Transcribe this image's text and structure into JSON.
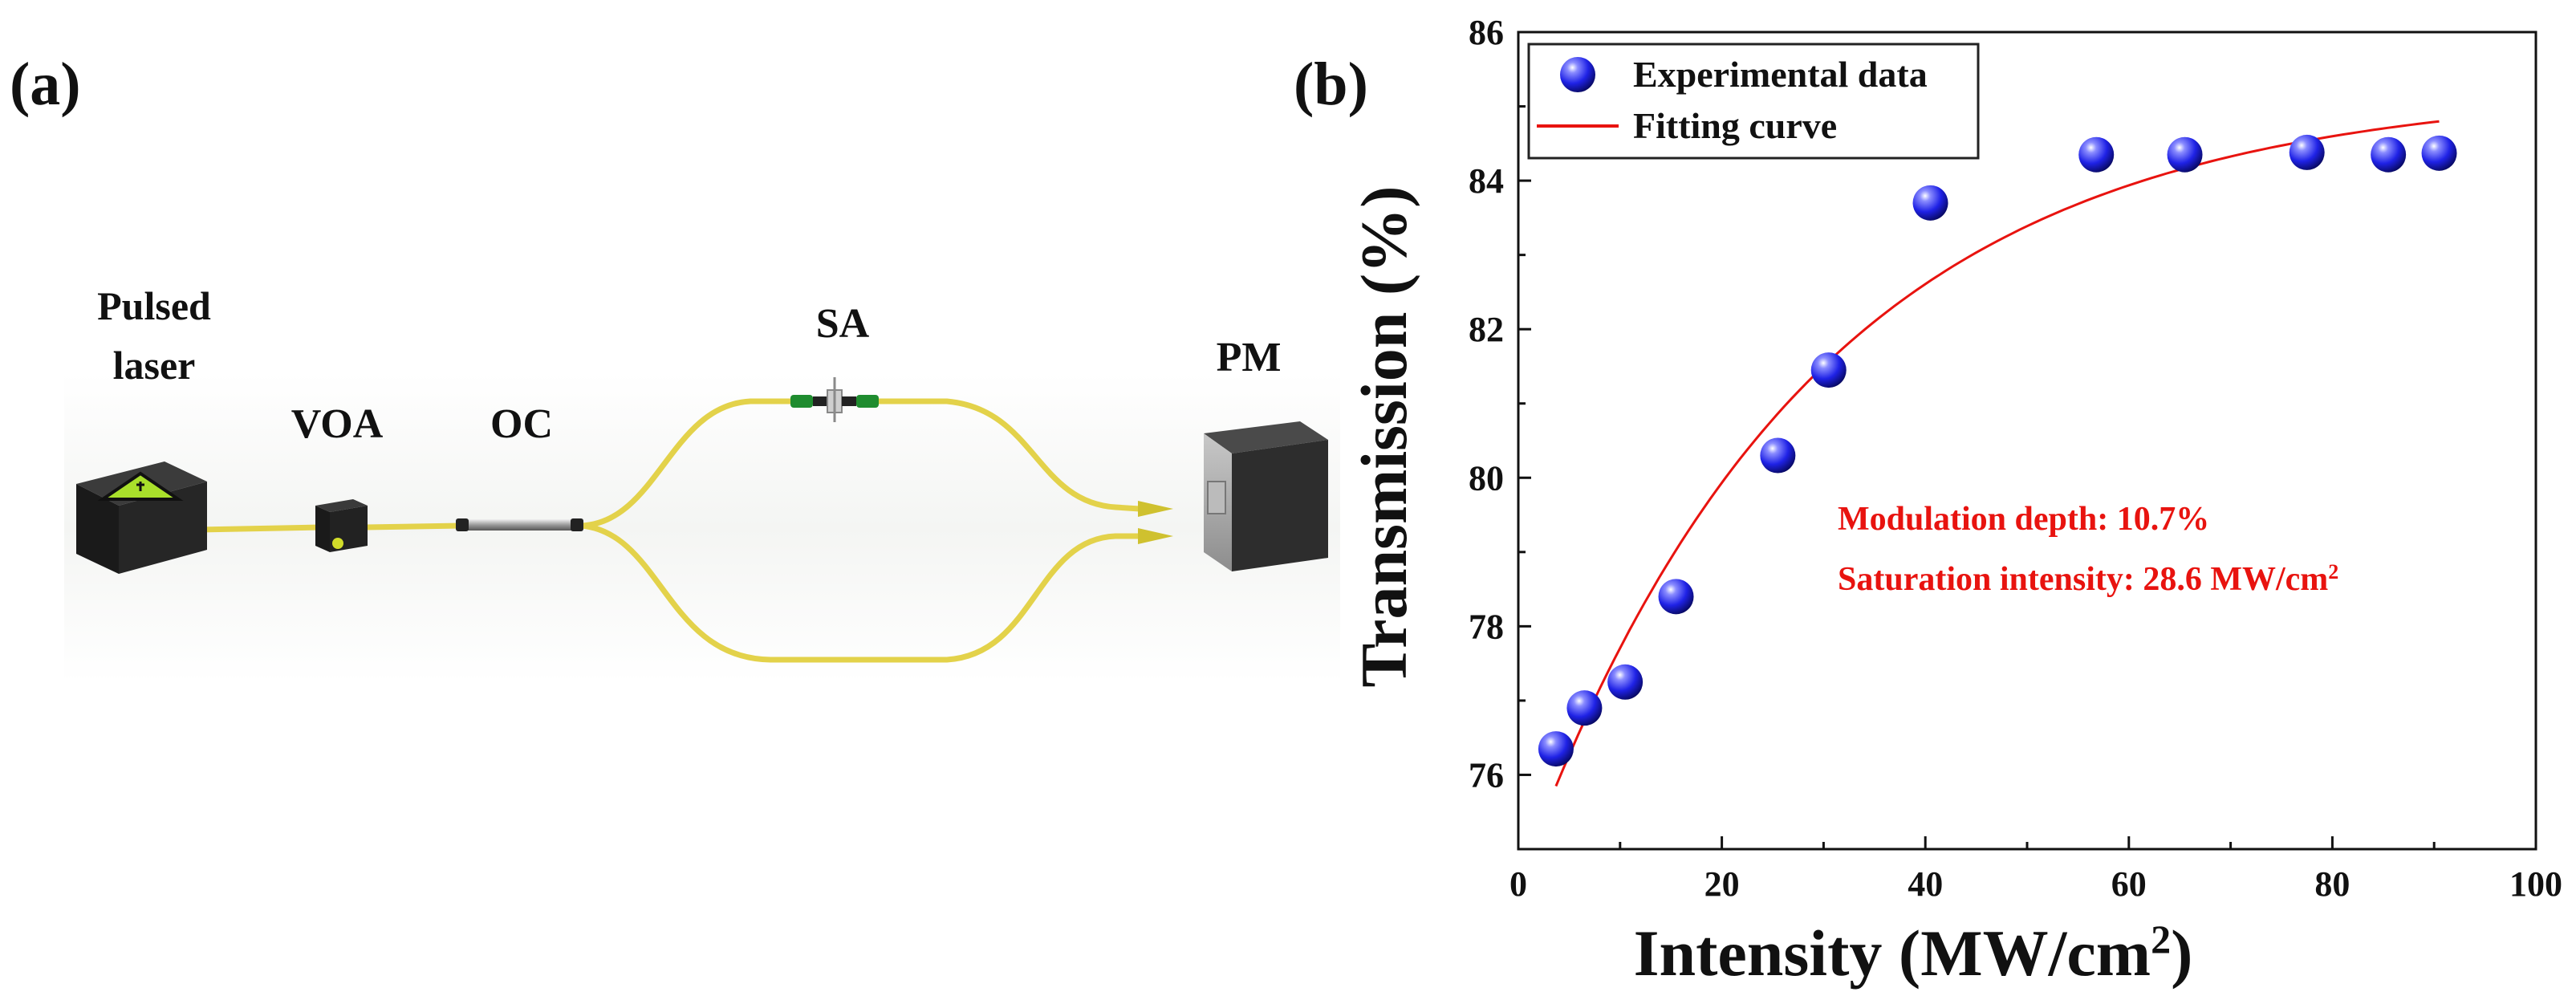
{
  "panel_a": {
    "label": "(a)",
    "components": {
      "laser_line1": "Pulsed",
      "laser_line2": "laser",
      "voa": "VOA",
      "oc": "OC",
      "sa": "SA",
      "pm": "PM"
    }
  },
  "panel_b": {
    "label": "(b)",
    "annotation": {
      "modulation": "Modulation depth: 10.7%",
      "saturation_prefix": "Saturation intensity: 28.6 MW/cm",
      "saturation_sup": "2"
    }
  },
  "colors": {
    "fiber": "#e3d24a",
    "curve": "#e8130f",
    "marker": "#1f22e6",
    "annotation": "#e8130f"
  },
  "chart_data": {
    "type": "scatter",
    "xlabel_main": "Intensity (MW/cm",
    "xlabel_sup": "2",
    "xlabel_tail": ")",
    "ylabel": "Transmission (%)",
    "xlim": [
      0,
      100
    ],
    "ylim": [
      75,
      86
    ],
    "xticks": [
      0,
      20,
      40,
      60,
      80,
      100
    ],
    "yticks": [
      76,
      78,
      80,
      82,
      84,
      86
    ],
    "legend": {
      "position": "top-left",
      "entries": [
        "Experimental data",
        "Fitting curve"
      ]
    },
    "series": [
      {
        "name": "Experimental data",
        "kind": "scatter",
        "x": [
          3.7,
          6.5,
          10.5,
          15.5,
          25.5,
          30.5,
          40.5,
          56.8,
          65.5,
          77.5,
          85.5,
          90.5
        ],
        "y": [
          76.35,
          76.9,
          77.25,
          78.4,
          80.3,
          81.45,
          83.7,
          84.35,
          84.35,
          84.38,
          84.35,
          84.37
        ]
      },
      {
        "name": "Fitting curve",
        "kind": "line",
        "model": {
          "T_ns": 85.25,
          "delta_T": 10.7,
          "I_sat": 28.6,
          "x_range": [
            3.7,
            90.5
          ]
        }
      }
    ]
  }
}
